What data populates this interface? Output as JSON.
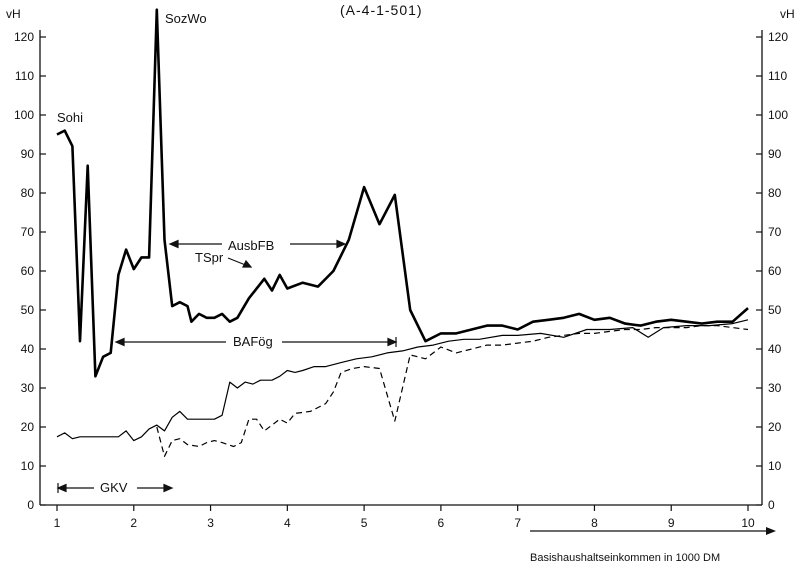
{
  "chart_data": {
    "type": "line",
    "title": "(A-4-1-501)",
    "xlabel": "Basishaushaltseinkommen in 1000 DM",
    "ylabel_left": "vH",
    "ylabel_right": "vH",
    "xlim": [
      1,
      10
    ],
    "ylim": [
      0,
      120
    ],
    "x_ticks": [
      1,
      2,
      3,
      4,
      5,
      6,
      7,
      8,
      9,
      10
    ],
    "y_ticks": [
      0,
      10,
      20,
      30,
      40,
      50,
      60,
      70,
      80,
      90,
      100,
      110,
      120
    ],
    "grid": false,
    "series": [
      {
        "name": "TSpr",
        "style": "thick",
        "points": [
          [
            1,
            95
          ],
          [
            1.1,
            96
          ],
          [
            1.2,
            92
          ],
          [
            1.3,
            42
          ],
          [
            1.4,
            87
          ],
          [
            1.5,
            33
          ],
          [
            1.6,
            38
          ],
          [
            1.7,
            39
          ],
          [
            1.8,
            59
          ],
          [
            1.9,
            65.5
          ],
          [
            2.0,
            60.5
          ],
          [
            2.1,
            63.5
          ],
          [
            2.2,
            63.5
          ],
          [
            2.3,
            127
          ],
          [
            2.4,
            68
          ],
          [
            2.5,
            51
          ],
          [
            2.6,
            52
          ],
          [
            2.7,
            51
          ],
          [
            2.75,
            47
          ],
          [
            2.85,
            49
          ],
          [
            2.95,
            48
          ],
          [
            3.05,
            48
          ],
          [
            3.15,
            49
          ],
          [
            3.25,
            47
          ],
          [
            3.35,
            48
          ],
          [
            3.5,
            53
          ],
          [
            3.7,
            58
          ],
          [
            3.8,
            55
          ],
          [
            3.9,
            59
          ],
          [
            4.0,
            55.5
          ],
          [
            4.2,
            57
          ],
          [
            4.4,
            56
          ],
          [
            4.6,
            60
          ],
          [
            4.8,
            68
          ],
          [
            5.0,
            81.5
          ],
          [
            5.2,
            72
          ],
          [
            5.4,
            79.5
          ],
          [
            5.6,
            50
          ],
          [
            5.8,
            42
          ],
          [
            6.0,
            44
          ],
          [
            6.2,
            44
          ],
          [
            6.4,
            45
          ],
          [
            6.6,
            46
          ],
          [
            6.8,
            46
          ],
          [
            7.0,
            45
          ],
          [
            7.2,
            47
          ],
          [
            7.4,
            47.5
          ],
          [
            7.6,
            48
          ],
          [
            7.8,
            49
          ],
          [
            8.0,
            47.5
          ],
          [
            8.2,
            48
          ],
          [
            8.4,
            46.5
          ],
          [
            8.6,
            46
          ],
          [
            8.8,
            47
          ],
          [
            9.0,
            47.5
          ],
          [
            9.2,
            47
          ],
          [
            9.4,
            46.5
          ],
          [
            9.6,
            47
          ],
          [
            9.8,
            47
          ],
          [
            10,
            50.5
          ]
        ]
      },
      {
        "name": "GKV",
        "style": "thin",
        "points": [
          [
            1,
            17.5
          ],
          [
            1.1,
            18.5
          ],
          [
            1.2,
            17
          ],
          [
            1.3,
            17.5
          ],
          [
            1.5,
            17.5
          ],
          [
            1.7,
            17.5
          ],
          [
            1.8,
            17.5
          ],
          [
            1.9,
            19
          ],
          [
            2.0,
            16.5
          ],
          [
            2.1,
            17.5
          ],
          [
            2.2,
            19.5
          ],
          [
            2.3,
            20.5
          ],
          [
            2.4,
            19
          ],
          [
            2.5,
            22.5
          ],
          [
            2.6,
            24
          ],
          [
            2.7,
            22
          ],
          [
            2.9,
            22
          ],
          [
            3.05,
            22
          ],
          [
            3.15,
            23
          ],
          [
            3.25,
            31.5
          ],
          [
            3.35,
            30
          ],
          [
            3.45,
            31.5
          ],
          [
            3.55,
            31
          ],
          [
            3.65,
            32
          ],
          [
            3.8,
            32
          ],
          [
            3.9,
            33
          ],
          [
            4.0,
            34.5
          ],
          [
            4.1,
            34
          ],
          [
            4.2,
            34.5
          ],
          [
            4.35,
            35.5
          ],
          [
            4.5,
            35.5
          ],
          [
            4.7,
            36.5
          ],
          [
            4.9,
            37.5
          ],
          [
            5.1,
            38
          ],
          [
            5.3,
            39
          ],
          [
            5.5,
            39.5
          ],
          [
            5.7,
            40.5
          ],
          [
            5.9,
            41
          ],
          [
            6.1,
            42
          ],
          [
            6.3,
            42.5
          ],
          [
            6.5,
            42.5
          ],
          [
            6.8,
            43.5
          ],
          [
            7.0,
            43.5
          ],
          [
            7.3,
            44
          ],
          [
            7.6,
            43
          ],
          [
            7.9,
            45
          ],
          [
            8.2,
            45
          ],
          [
            8.5,
            45.5
          ],
          [
            8.7,
            43
          ],
          [
            8.9,
            45.5
          ],
          [
            9.2,
            46
          ],
          [
            9.5,
            46
          ],
          [
            9.8,
            46.5
          ],
          [
            10,
            47.5
          ]
        ]
      },
      {
        "name": "BAFög",
        "style": "dashed",
        "points": [
          [
            2.3,
            20
          ],
          [
            2.4,
            12.5
          ],
          [
            2.5,
            16.5
          ],
          [
            2.6,
            17
          ],
          [
            2.7,
            15.5
          ],
          [
            2.85,
            15
          ],
          [
            2.95,
            16
          ],
          [
            3.05,
            16.5
          ],
          [
            3.15,
            16
          ],
          [
            3.3,
            15
          ],
          [
            3.4,
            16
          ],
          [
            3.5,
            22
          ],
          [
            3.6,
            22
          ],
          [
            3.7,
            19
          ],
          [
            3.8,
            20.5
          ],
          [
            3.9,
            22
          ],
          [
            4.0,
            21
          ],
          [
            4.1,
            23.5
          ],
          [
            4.3,
            24
          ],
          [
            4.5,
            26
          ],
          [
            4.6,
            29
          ],
          [
            4.7,
            34
          ],
          [
            4.85,
            35
          ],
          [
            5.0,
            35.5
          ],
          [
            5.2,
            35
          ],
          [
            5.4,
            21.5
          ],
          [
            5.6,
            38.5
          ],
          [
            5.8,
            37.5
          ],
          [
            6.0,
            40.5
          ],
          [
            6.2,
            39
          ],
          [
            6.4,
            40
          ],
          [
            6.6,
            41
          ],
          [
            6.8,
            41
          ],
          [
            7.0,
            41.5
          ],
          [
            7.2,
            42
          ],
          [
            7.4,
            43
          ],
          [
            7.6,
            43.5
          ],
          [
            7.8,
            44
          ],
          [
            8.0,
            44
          ],
          [
            8.2,
            44.5
          ],
          [
            8.4,
            45
          ],
          [
            8.6,
            45
          ],
          [
            8.8,
            45.5
          ],
          [
            9.0,
            45.5
          ],
          [
            9.2,
            45.5
          ],
          [
            9.4,
            46
          ],
          [
            9.6,
            46
          ],
          [
            9.8,
            45.5
          ],
          [
            10,
            45
          ]
        ]
      }
    ],
    "annotations": {
      "sohi": "Sohi",
      "sozwo": "SozWo",
      "ausbfb": "AusbFB",
      "tspr": "TSpr",
      "bafoeg": "BAFög",
      "gkv": "GKV"
    }
  }
}
